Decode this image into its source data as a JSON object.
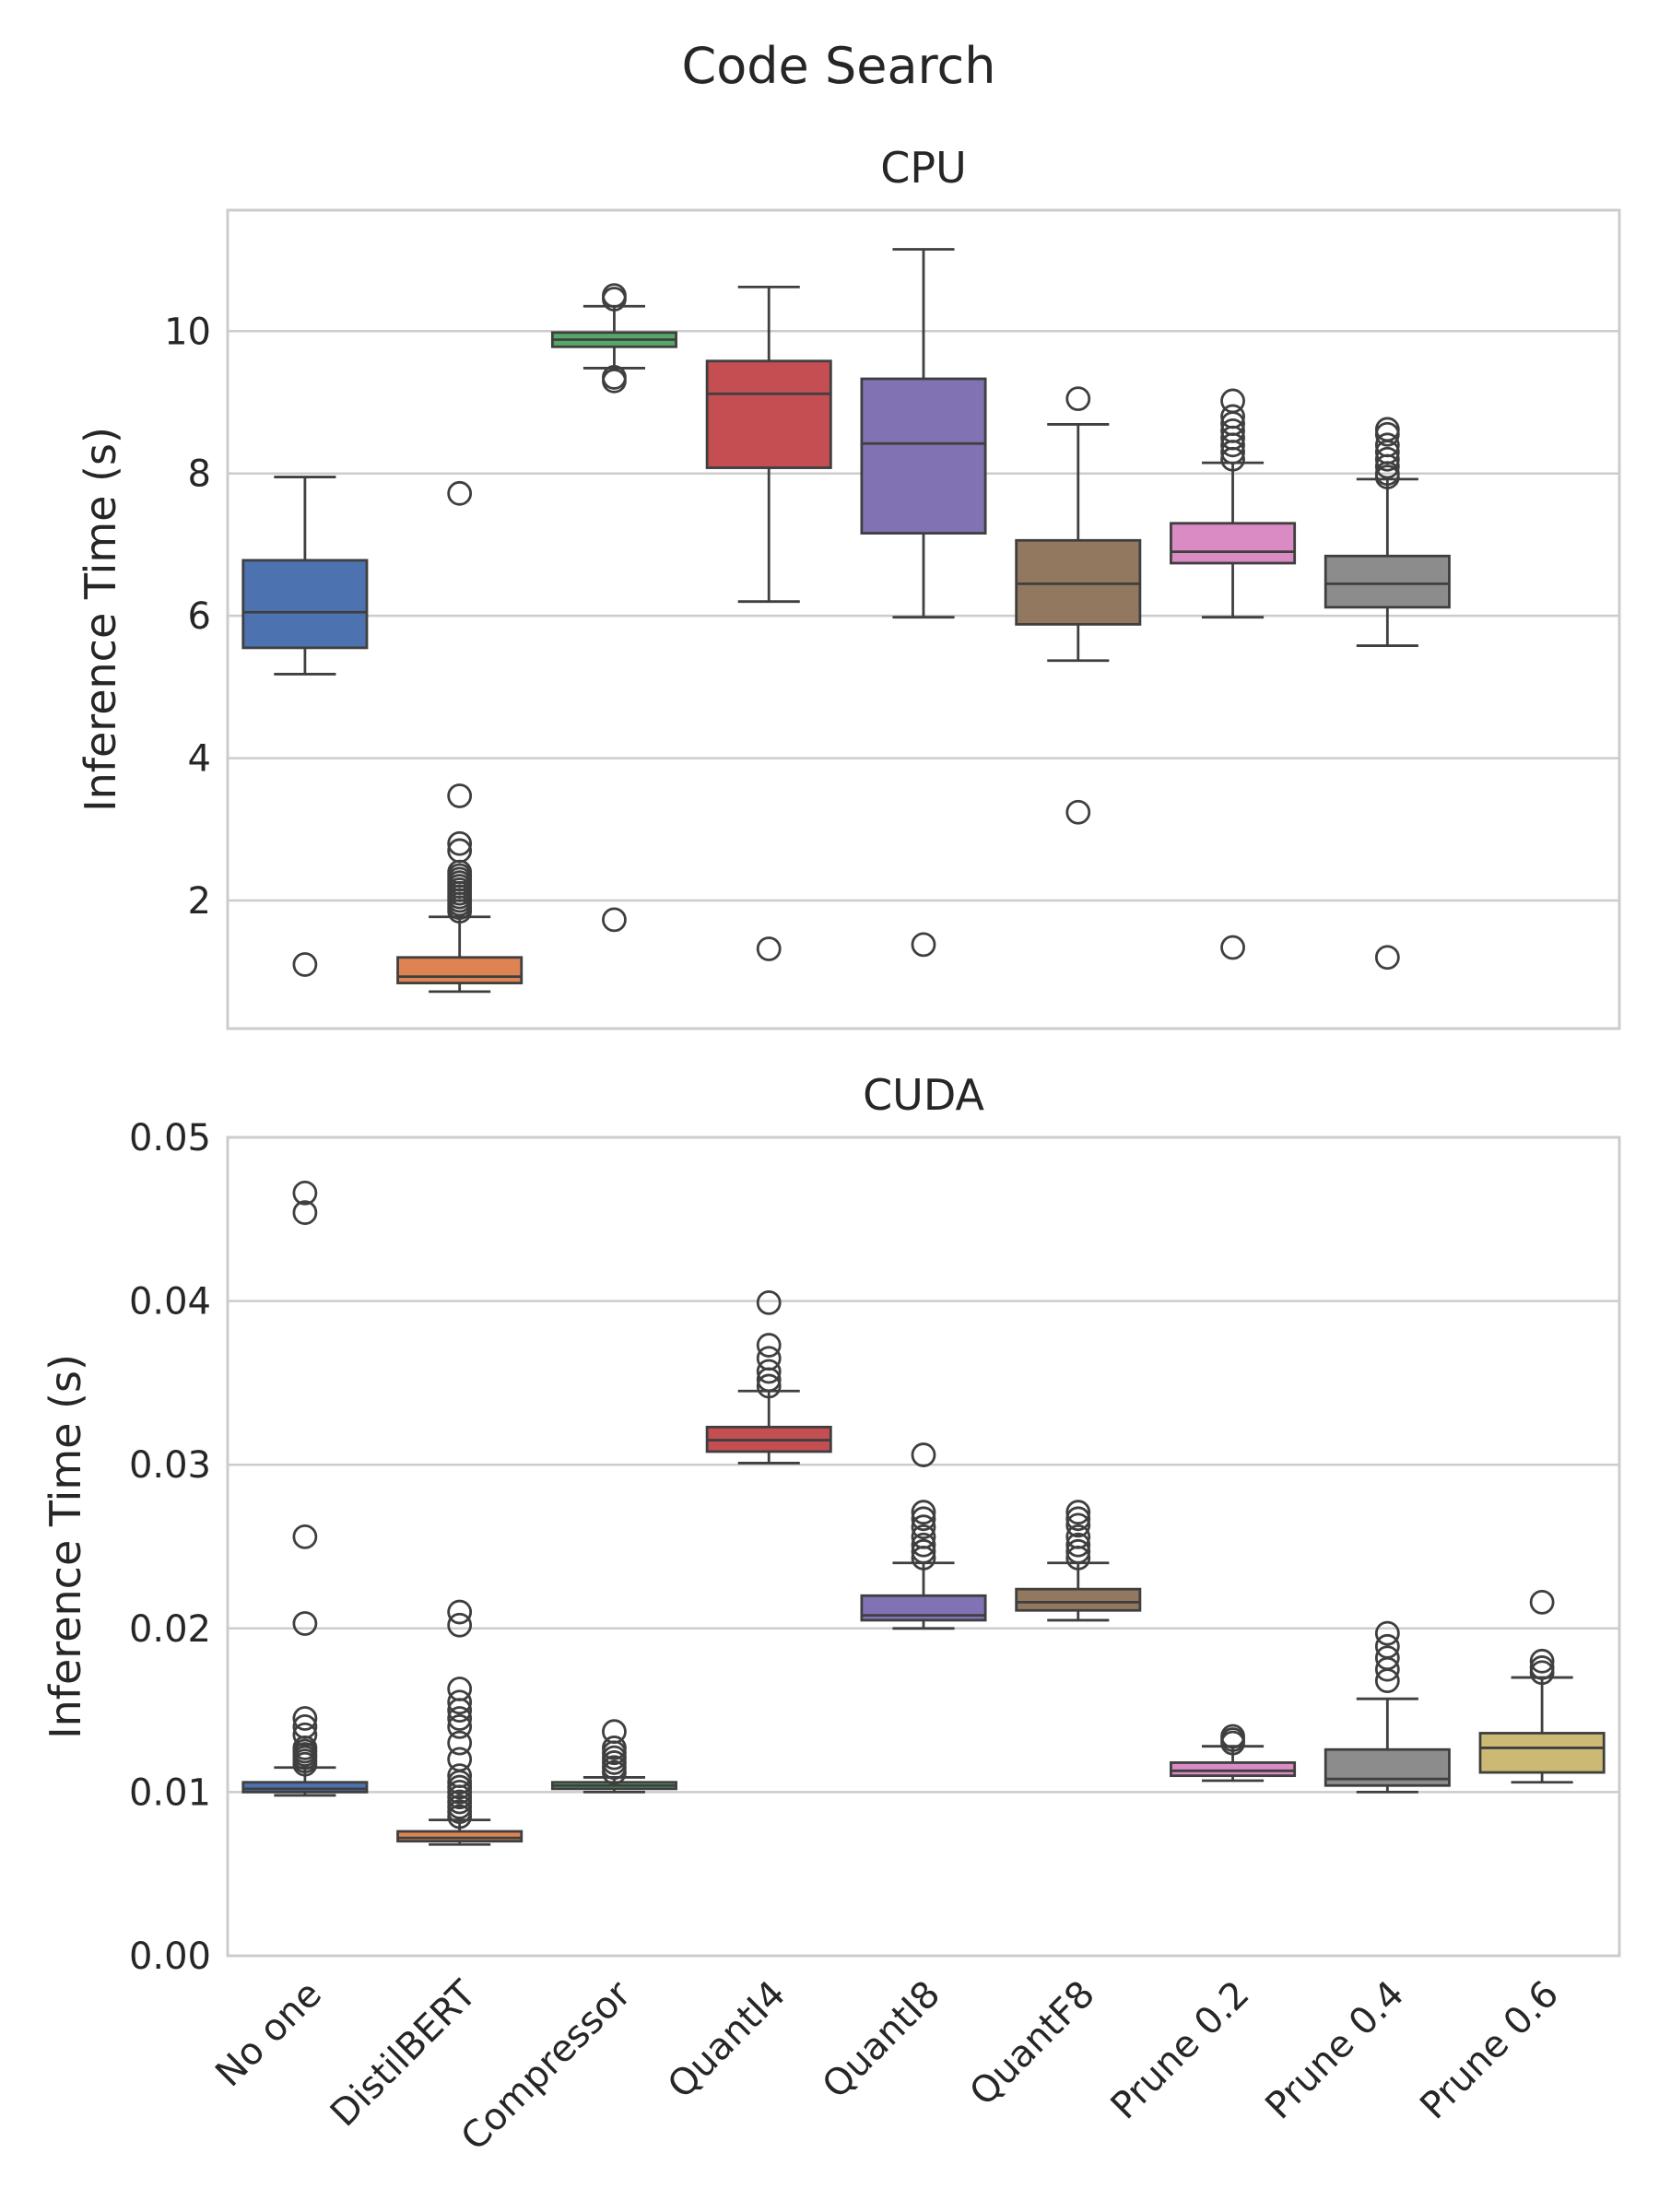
{
  "title": "Code Search",
  "categories": [
    "No one",
    "DistilBERT",
    "Compressor",
    "QuantI4",
    "QuantI8",
    "QuantF8",
    "Prune 0.2",
    "Prune 0.4",
    "Prune 0.6"
  ],
  "colors": [
    "#4c72b0",
    "#dd8452",
    "#55a868",
    "#c44e52",
    "#8172b3",
    "#937860",
    "#da8bc3",
    "#8c8c8c",
    "#ccb974"
  ],
  "chart_data": [
    {
      "type": "box",
      "title": "CPU",
      "ylabel": "Inference Time (s)",
      "ylim": [
        0.2,
        11.7
      ],
      "yticks": [
        2,
        4,
        6,
        8,
        10
      ],
      "ytick_labels": [
        "2",
        "4",
        "6",
        "8",
        "10"
      ],
      "grid": true,
      "boxes": [
        {
          "category": "No one",
          "whislo": 5.18,
          "q1": 5.55,
          "med": 6.05,
          "q3": 6.78,
          "whishi": 7.95,
          "fliers": [
            1.1
          ]
        },
        {
          "category": "DistilBERT",
          "whislo": 0.72,
          "q1": 0.84,
          "med": 0.93,
          "q3": 1.2,
          "whishi": 1.77,
          "fliers": [
            1.85,
            1.9,
            1.95,
            2.0,
            2.05,
            2.1,
            2.15,
            2.2,
            2.25,
            2.3,
            2.35,
            2.4,
            2.7,
            2.8,
            3.47,
            7.72
          ]
        },
        {
          "category": "Compressor",
          "whislo": 9.48,
          "q1": 9.78,
          "med": 9.88,
          "q3": 9.98,
          "whishi": 10.35,
          "fliers": [
            10.45,
            10.5,
            9.35,
            9.3,
            1.73
          ]
        },
        {
          "category": "QuantI4",
          "whislo": 6.2,
          "q1": 8.08,
          "med": 9.12,
          "q3": 9.58,
          "whishi": 10.62,
          "fliers": [
            1.32
          ]
        },
        {
          "category": "QuantI8",
          "whislo": 5.98,
          "q1": 7.16,
          "med": 8.42,
          "q3": 9.33,
          "whishi": 11.15,
          "fliers": [
            1.38
          ]
        },
        {
          "category": "QuantF8",
          "whislo": 5.37,
          "q1": 5.88,
          "med": 6.45,
          "q3": 7.06,
          "whishi": 8.69,
          "fliers": [
            9.05,
            3.24
          ]
        },
        {
          "category": "Prune 0.2",
          "whislo": 5.98,
          "q1": 6.74,
          "med": 6.9,
          "q3": 7.3,
          "whishi": 8.15,
          "fliers": [
            8.2,
            8.3,
            8.4,
            8.5,
            8.6,
            8.7,
            8.8,
            9.02,
            1.34
          ]
        },
        {
          "category": "Prune 0.4",
          "whislo": 5.58,
          "q1": 6.12,
          "med": 6.45,
          "q3": 6.84,
          "whishi": 7.92,
          "fliers": [
            7.95,
            8.0,
            8.1,
            8.2,
            8.3,
            8.4,
            8.55,
            8.62,
            1.2
          ]
        }
      ]
    },
    {
      "type": "box",
      "title": "CUDA",
      "ylabel": "Inference Time (s)",
      "ylim": [
        0.0,
        0.05
      ],
      "yticks": [
        0.0,
        0.01,
        0.02,
        0.03,
        0.04,
        0.05
      ],
      "ytick_labels": [
        "0.00",
        "0.01",
        "0.02",
        "0.03",
        "0.04",
        "0.05"
      ],
      "grid": true,
      "boxes": [
        {
          "category": "No one",
          "whislo": 0.0098,
          "q1": 0.01,
          "med": 0.0102,
          "q3": 0.0106,
          "whishi": 0.0115,
          "fliers": [
            0.0117,
            0.0119,
            0.0121,
            0.0123,
            0.0125,
            0.0127,
            0.0135,
            0.014,
            0.0145,
            0.0203,
            0.0256,
            0.0454,
            0.0466
          ]
        },
        {
          "category": "DistilBERT",
          "whislo": 0.0068,
          "q1": 0.007,
          "med": 0.0072,
          "q3": 0.0076,
          "whishi": 0.0083,
          "fliers": [
            0.0085,
            0.0088,
            0.0091,
            0.0094,
            0.0097,
            0.01,
            0.0103,
            0.0106,
            0.011,
            0.012,
            0.013,
            0.014,
            0.0145,
            0.015,
            0.0155,
            0.0163,
            0.0202,
            0.021
          ]
        },
        {
          "category": "Compressor",
          "whislo": 0.01,
          "q1": 0.0102,
          "med": 0.0104,
          "q3": 0.0106,
          "whishi": 0.0109,
          "fliers": [
            0.0112,
            0.0115,
            0.0118,
            0.0121,
            0.0124,
            0.0127,
            0.0137
          ]
        },
        {
          "category": "QuantI4",
          "whislo": 0.0301,
          "q1": 0.0308,
          "med": 0.0315,
          "q3": 0.0323,
          "whishi": 0.0345,
          "fliers": [
            0.0348,
            0.0352,
            0.0357,
            0.0365,
            0.0373,
            0.0399
          ]
        },
        {
          "category": "QuantI8",
          "whislo": 0.02,
          "q1": 0.0205,
          "med": 0.0208,
          "q3": 0.022,
          "whishi": 0.024,
          "fliers": [
            0.0243,
            0.0247,
            0.0251,
            0.0256,
            0.0262,
            0.0267,
            0.0271,
            0.0306
          ]
        },
        {
          "category": "QuantF8",
          "whislo": 0.0205,
          "q1": 0.0211,
          "med": 0.0216,
          "q3": 0.0224,
          "whishi": 0.024,
          "fliers": [
            0.0243,
            0.0247,
            0.0251,
            0.0256,
            0.0263,
            0.0267,
            0.0271
          ]
        },
        {
          "category": "Prune 0.2",
          "whislo": 0.0107,
          "q1": 0.011,
          "med": 0.0113,
          "q3": 0.0118,
          "whishi": 0.0128,
          "fliers": [
            0.013,
            0.0132,
            0.0134
          ]
        },
        {
          "category": "Prune 0.4",
          "whislo": 0.01,
          "q1": 0.0104,
          "med": 0.0108,
          "q3": 0.0126,
          "whishi": 0.0157,
          "fliers": [
            0.0168,
            0.0175,
            0.0182,
            0.0189,
            0.0197
          ]
        },
        {
          "category": "Prune 0.6",
          "whislo": 0.0106,
          "q1": 0.0112,
          "med": 0.0127,
          "q3": 0.0136,
          "whishi": 0.017,
          "fliers": [
            0.0173,
            0.0176,
            0.018,
            0.0216
          ]
        }
      ]
    }
  ]
}
